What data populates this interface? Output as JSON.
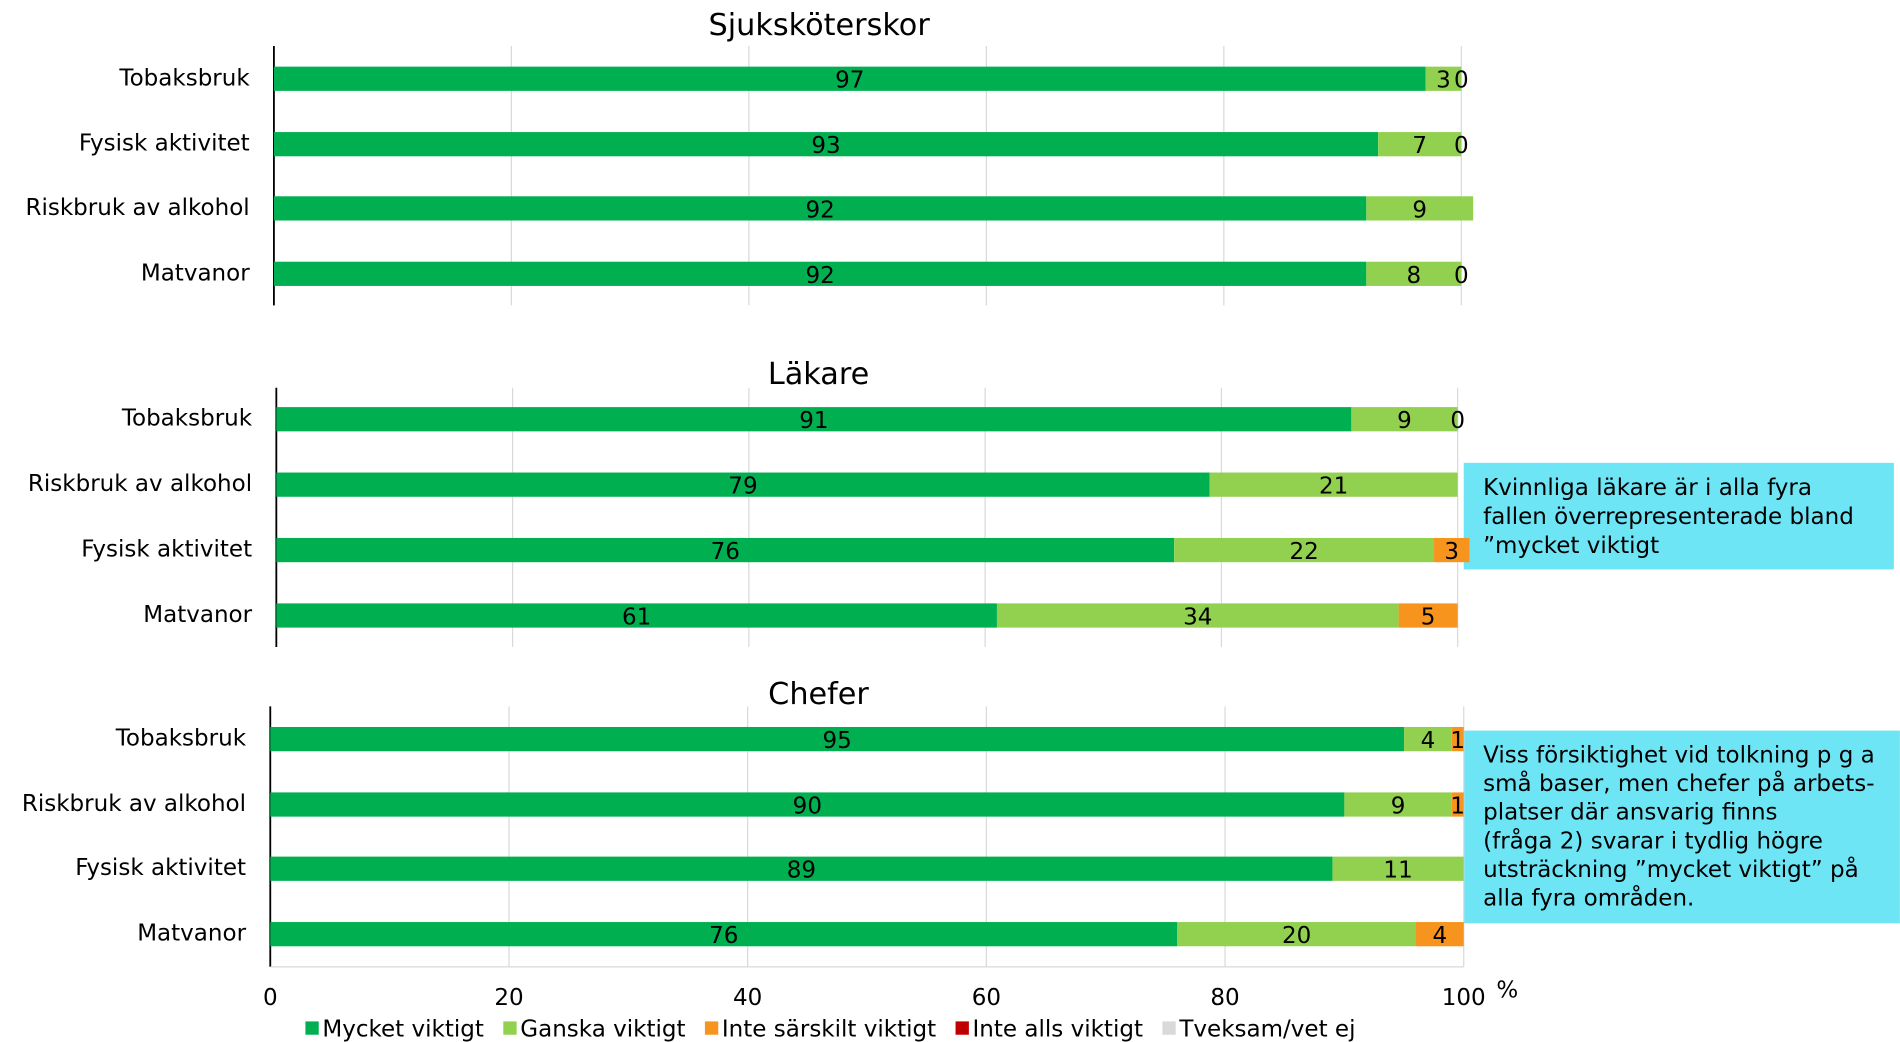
{
  "chart_data": [
    {
      "type": "stacked-barh",
      "title": "Sjuksköterskor",
      "categories": [
        "Tobaksbruk",
        "Fysisk aktivitet",
        "Riskbruk av alkohol",
        "Matvanor"
      ],
      "xlim": [
        0,
        100
      ],
      "grid": true,
      "series": [
        {
          "name": "Mycket viktigt",
          "color": "#00b050",
          "values": [
            97,
            93,
            92,
            92
          ]
        },
        {
          "name": "Ganska viktigt",
          "color": "#92d050",
          "values": [
            3,
            7,
            9,
            8
          ]
        },
        {
          "name": "Inte särskilt viktigt",
          "color": "#f7941d",
          "values": [
            0,
            0,
            null,
            0
          ]
        },
        {
          "name": "Inte alls viktigt",
          "color": "#c00000",
          "values": [
            null,
            null,
            null,
            null
          ]
        },
        {
          "name": "Tveksam/vet ej",
          "color": "#d9d9d9",
          "values": [
            null,
            null,
            null,
            null
          ]
        }
      ]
    },
    {
      "type": "stacked-barh",
      "title": "Läkare",
      "categories": [
        "Tobaksbruk",
        "Riskbruk av alkohol",
        "Fysisk aktivitet",
        "Matvanor"
      ],
      "xlim": [
        0,
        100
      ],
      "grid": true,
      "series": [
        {
          "name": "Mycket viktigt",
          "color": "#00b050",
          "values": [
            91,
            79,
            76,
            61
          ]
        },
        {
          "name": "Ganska viktigt",
          "color": "#92d050",
          "values": [
            9,
            21,
            22,
            34
          ]
        },
        {
          "name": "Inte särskilt viktigt",
          "color": "#f7941d",
          "values": [
            0,
            null,
            3,
            5
          ]
        },
        {
          "name": "Inte alls viktigt",
          "color": "#c00000",
          "values": [
            null,
            null,
            null,
            null
          ]
        },
        {
          "name": "Tveksam/vet ej",
          "color": "#d9d9d9",
          "values": [
            null,
            null,
            null,
            null
          ]
        }
      ]
    },
    {
      "type": "stacked-barh",
      "title": "Chefer",
      "categories": [
        "Tobaksbruk",
        "Riskbruk av alkohol",
        "Fysisk aktivitet",
        "Matvanor"
      ],
      "xlim": [
        0,
        100
      ],
      "xticks": [
        0,
        20,
        40,
        60,
        80,
        100
      ],
      "xlabel": "%",
      "grid": true,
      "series": [
        {
          "name": "Mycket viktigt",
          "color": "#00b050",
          "values": [
            95,
            90,
            89,
            76
          ]
        },
        {
          "name": "Ganska viktigt",
          "color": "#92d050",
          "values": [
            4,
            9,
            11,
            20
          ]
        },
        {
          "name": "Inte särskilt viktigt",
          "color": "#f7941d",
          "values": [
            1,
            1,
            null,
            4
          ]
        },
        {
          "name": "Inte alls viktigt",
          "color": "#c00000",
          "values": [
            null,
            null,
            null,
            null
          ]
        },
        {
          "name": "Tveksam/vet ej",
          "color": "#d9d9d9",
          "values": [
            null,
            null,
            null,
            null
          ]
        }
      ]
    }
  ],
  "annotations": [
    {
      "lines": [
        "Kvinnliga läkare är i alla fyra",
        "fallen överrepresenterade bland",
        "”mycket viktigt"
      ]
    },
    {
      "lines": [
        "Viss försiktighet vid tolkning p g a",
        "små baser, men chefer på arbets-",
        "platser där ansvarig finns",
        "(fråga 2) svarar i tydlig högre",
        "utsträckning ”mycket viktigt” på",
        "alla fyra områden."
      ]
    }
  ]
}
